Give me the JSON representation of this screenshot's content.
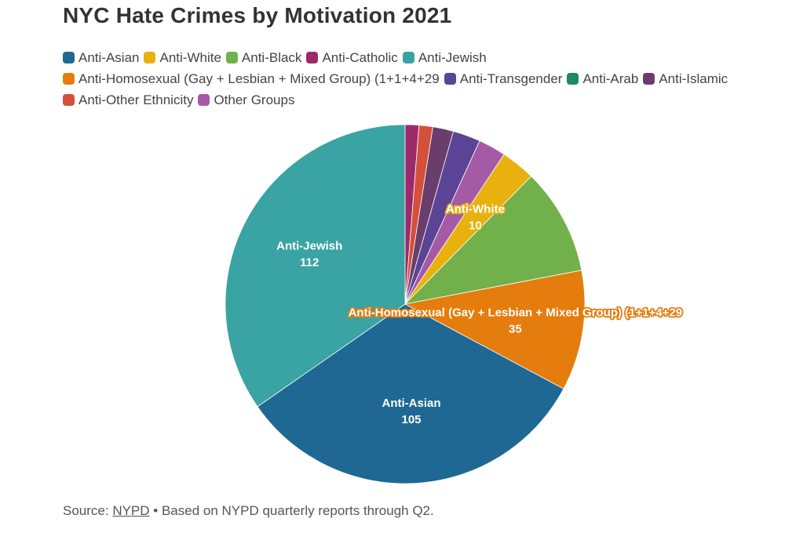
{
  "chart_data": {
    "type": "pie",
    "title": "NYC Hate Crimes by Motivation 2021",
    "legend_position": "top",
    "slice_order": [
      "Anti-Catholic",
      "Anti-Other Ethnicity",
      "Anti-Islamic",
      "Anti-Transgender",
      "Other Groups",
      "Anti-White",
      "Anti-Black",
      "Anti-Homosexual (Gay + Lesbian + Mixed Group) (1+1+4+29",
      "Anti-Asian",
      "Anti-Jewish"
    ],
    "slices": [
      {
        "label": "Anti-Asian",
        "value": 105,
        "color": "#1f6894",
        "show_label": true,
        "label_style": "inside"
      },
      {
        "label": "Anti-White",
        "value": 10,
        "color": "#e9b10e",
        "show_label": true,
        "label_style": "outlined"
      },
      {
        "label": "Anti-Black",
        "value": 31,
        "color": "#72b04b",
        "show_label": false
      },
      {
        "label": "Anti-Catholic",
        "value": 4,
        "color": "#9c2a6b",
        "show_label": false
      },
      {
        "label": "Anti-Jewish",
        "value": 112,
        "color": "#3aa3a3",
        "show_label": true,
        "label_style": "inside"
      },
      {
        "label": "Anti-Homosexual (Gay + Lesbian + Mixed Group) (1+1+4+29",
        "value": 35,
        "color": "#e47d0d",
        "show_label": true,
        "label_style": "outlined"
      },
      {
        "label": "Anti-Transgender",
        "value": 8,
        "color": "#5b4495",
        "show_label": false
      },
      {
        "label": "Anti-Arab",
        "value": 0,
        "color": "#1b8a5c",
        "show_label": false
      },
      {
        "label": "Anti-Islamic",
        "value": 6,
        "color": "#6a3d6d",
        "show_label": false
      },
      {
        "label": "Anti-Other Ethnicity",
        "value": 4,
        "color": "#d4503b",
        "show_label": false
      },
      {
        "label": "Other Groups",
        "value": 8,
        "color": "#a55aa5",
        "show_label": false
      }
    ]
  },
  "footer": {
    "source_prefix": "Source: ",
    "source_link": "NYPD",
    "note": " • Based on NYPD quarterly reports through Q2."
  }
}
